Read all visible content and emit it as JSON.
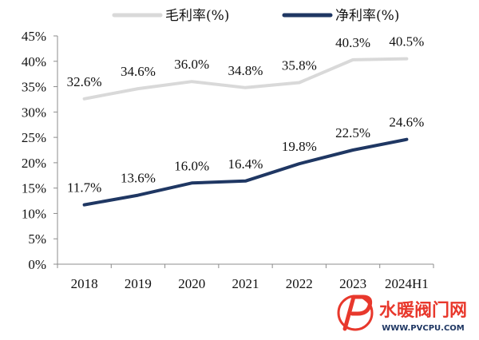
{
  "chart_data": {
    "type": "line",
    "categories": [
      "2018",
      "2019",
      "2020",
      "2021",
      "2022",
      "2023",
      "2024H1"
    ],
    "y_ticks": [
      "0%",
      "5%",
      "10%",
      "15%",
      "20%",
      "25%",
      "30%",
      "35%",
      "40%",
      "45%"
    ],
    "ylim": [
      0,
      45
    ],
    "grid": false,
    "legend_position": "top",
    "series": [
      {
        "name": "毛利率(%)",
        "color": "#d9d9d9",
        "values": [
          32.6,
          34.6,
          36.0,
          34.8,
          35.8,
          40.3,
          40.5
        ],
        "labels": [
          "32.6%",
          "34.6%",
          "36.0%",
          "34.8%",
          "35.8%",
          "40.3%",
          "40.5%"
        ]
      },
      {
        "name": "净利率(%)",
        "color": "#1f3763",
        "values": [
          11.7,
          13.6,
          16.0,
          16.4,
          19.8,
          22.5,
          24.6
        ],
        "labels": [
          "11.7%",
          "13.6%",
          "16.0%",
          "16.4%",
          "19.8%",
          "22.5%",
          "24.6%"
        ]
      }
    ]
  },
  "watermark": {
    "name": "水暖阀门网",
    "url": "WWW.PVCPU.COM",
    "logo_color": "#e8382c"
  }
}
